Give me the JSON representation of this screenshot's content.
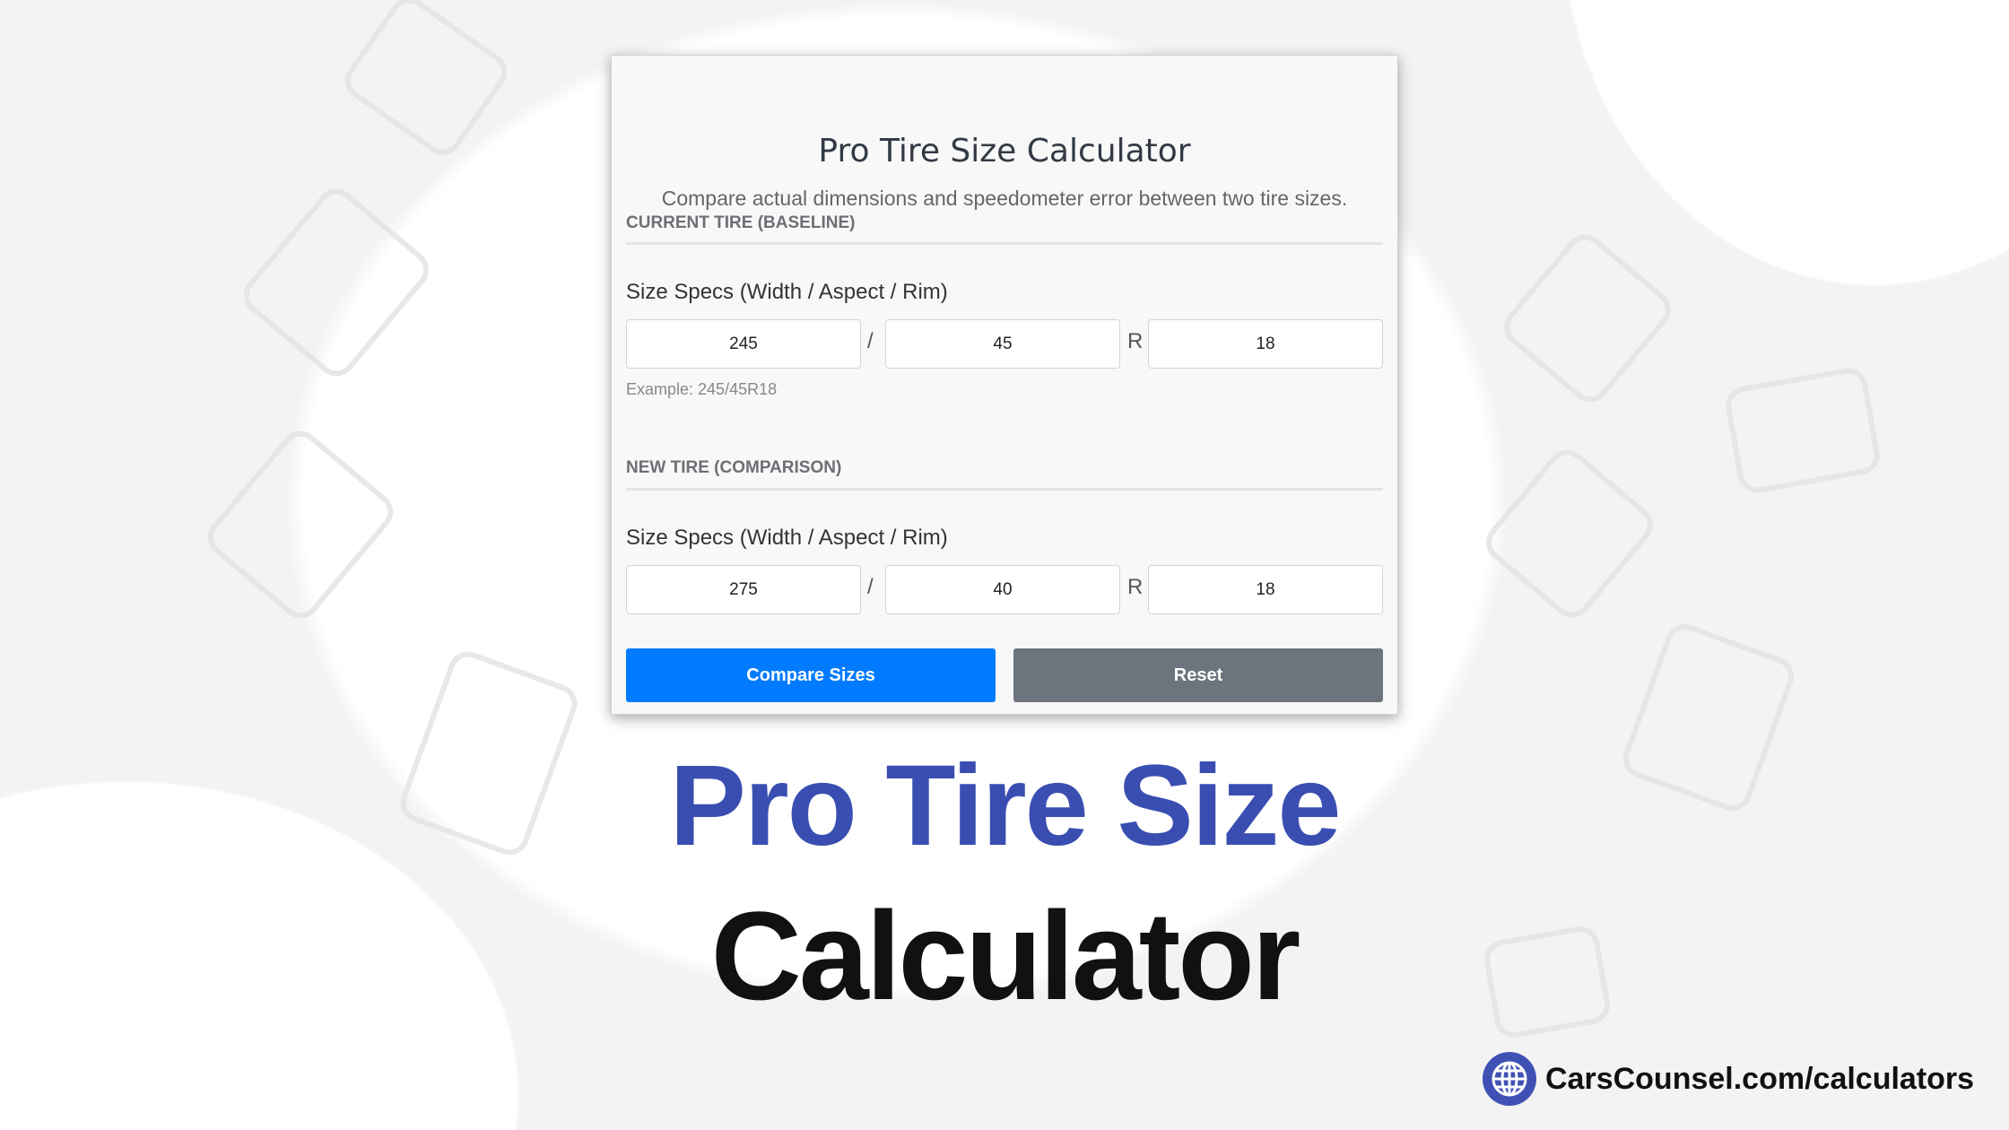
{
  "card": {
    "title": "Pro Tire Size Calculator",
    "subtitle": "Compare actual dimensions and speedometer error between two tire sizes.",
    "current": {
      "heading": "CURRENT TIRE (BASELINE)",
      "label": "Size Specs (Width / Aspect / Rim)",
      "width": "245",
      "aspect": "45",
      "rim": "18",
      "example": "Example: 245/45R18"
    },
    "new": {
      "heading": "NEW TIRE (COMPARISON)",
      "label": "Size Specs (Width / Aspect / Rim)",
      "width": "275",
      "aspect": "40",
      "rim": "18"
    },
    "separator_slash": "/",
    "separator_r": "R",
    "compare_label": "Compare Sizes",
    "reset_label": "Reset"
  },
  "banner": {
    "line1": "Pro Tire Size",
    "line2": "Calculator"
  },
  "footer": {
    "url": "CarsCounsel.com/calculators",
    "icon": "globe-icon"
  },
  "colors": {
    "primary": "#007bff",
    "reset": "#6c757d",
    "brand_blue": "#3a4eb1"
  }
}
